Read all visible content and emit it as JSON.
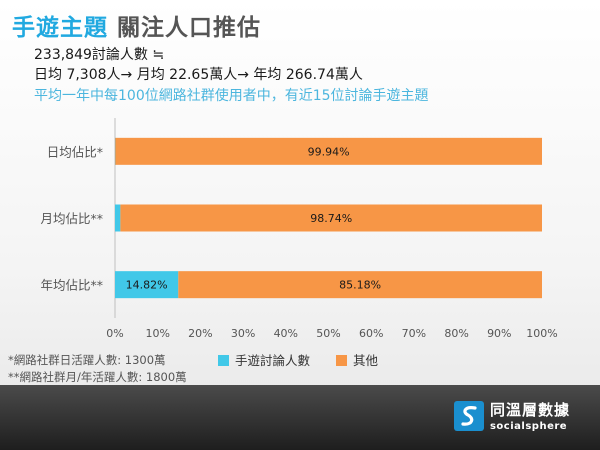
{
  "header": {
    "title_accent": "手遊主題",
    "title_rest": "關注人口推估",
    "line1": "233,849討論人數 ≒",
    "line2": "日均 7,308人→ 月均 22.65萬人→ 年均 266.74萬人",
    "line3": "平均一年中每100位網路社群使用者中，有近15位討論手遊主題"
  },
  "chart_data": {
    "type": "bar",
    "orientation": "horizontal",
    "stacked": true,
    "categories": [
      "日均佔比*",
      "月均佔比**",
      "年均佔比**"
    ],
    "series": [
      {
        "name": "手遊討論人數",
        "values": [
          0.06,
          1.26,
          14.82
        ],
        "labels": [
          "0.06%",
          "1.26%",
          "14.82%"
        ],
        "color": "#41c8e8"
      },
      {
        "name": "其他",
        "values": [
          99.94,
          98.74,
          85.18
        ],
        "labels": [
          "99.94%",
          "98.74%",
          "85.18%"
        ],
        "color": "#f79646"
      }
    ],
    "xlim": [
      0,
      100
    ],
    "xticks": [
      "0%",
      "10%",
      "20%",
      "30%",
      "40%",
      "50%",
      "60%",
      "70%",
      "80%",
      "90%",
      "100%"
    ],
    "grid": false,
    "legend": "bottom"
  },
  "notes": [
    "*網路社群日活躍人數: 1300萬",
    "**網路社群月/年活躍人數: 1800萬"
  ],
  "legend": [
    {
      "label": "手遊討論人數",
      "color": "#41c8e8"
    },
    {
      "label": "其他",
      "color": "#f79646"
    }
  ],
  "logo": {
    "name_zh": "同溫層數據",
    "name_en": "socialsphere"
  }
}
